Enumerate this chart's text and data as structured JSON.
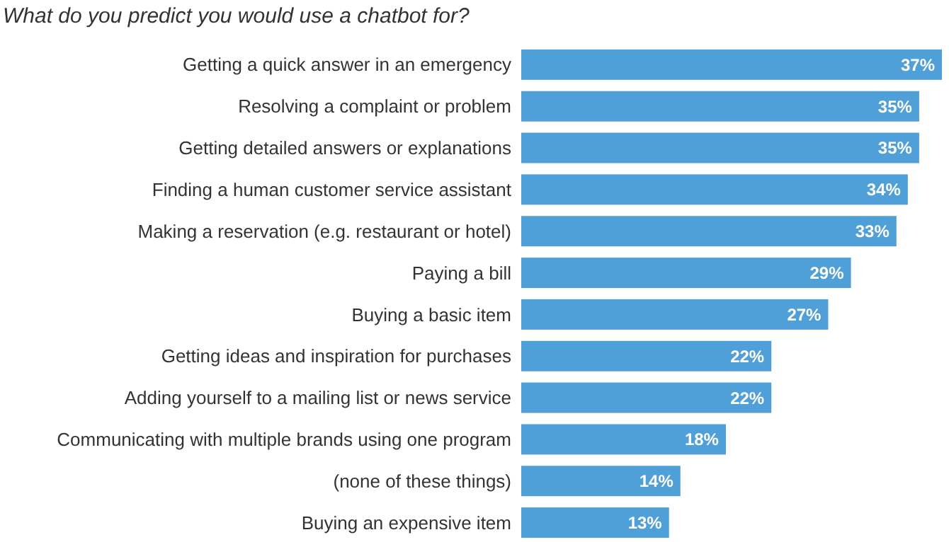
{
  "chart_data": {
    "type": "bar",
    "orientation": "horizontal",
    "title": "What do you predict you would use a chatbot for?",
    "categories": [
      "Getting a quick answer in an emergency",
      "Resolving a complaint or problem",
      "Getting detailed answers or explanations",
      "Finding a human customer service assistant",
      "Making a reservation (e.g. restaurant or hotel)",
      "Paying a bill",
      "Buying a basic item",
      "Getting ideas and inspiration for purchases",
      "Adding yourself to a mailing list or news service",
      "Communicating with multiple brands using one program",
      "(none of these things)",
      "Buying an expensive item"
    ],
    "values": [
      37,
      35,
      35,
      34,
      33,
      29,
      27,
      22,
      22,
      18,
      14,
      13
    ],
    "value_labels": [
      "37%",
      "35%",
      "35%",
      "34%",
      "33%",
      "29%",
      "27%",
      "22%",
      "22%",
      "18%",
      "14%",
      "13%"
    ],
    "color": "#4f9fd8"
  }
}
